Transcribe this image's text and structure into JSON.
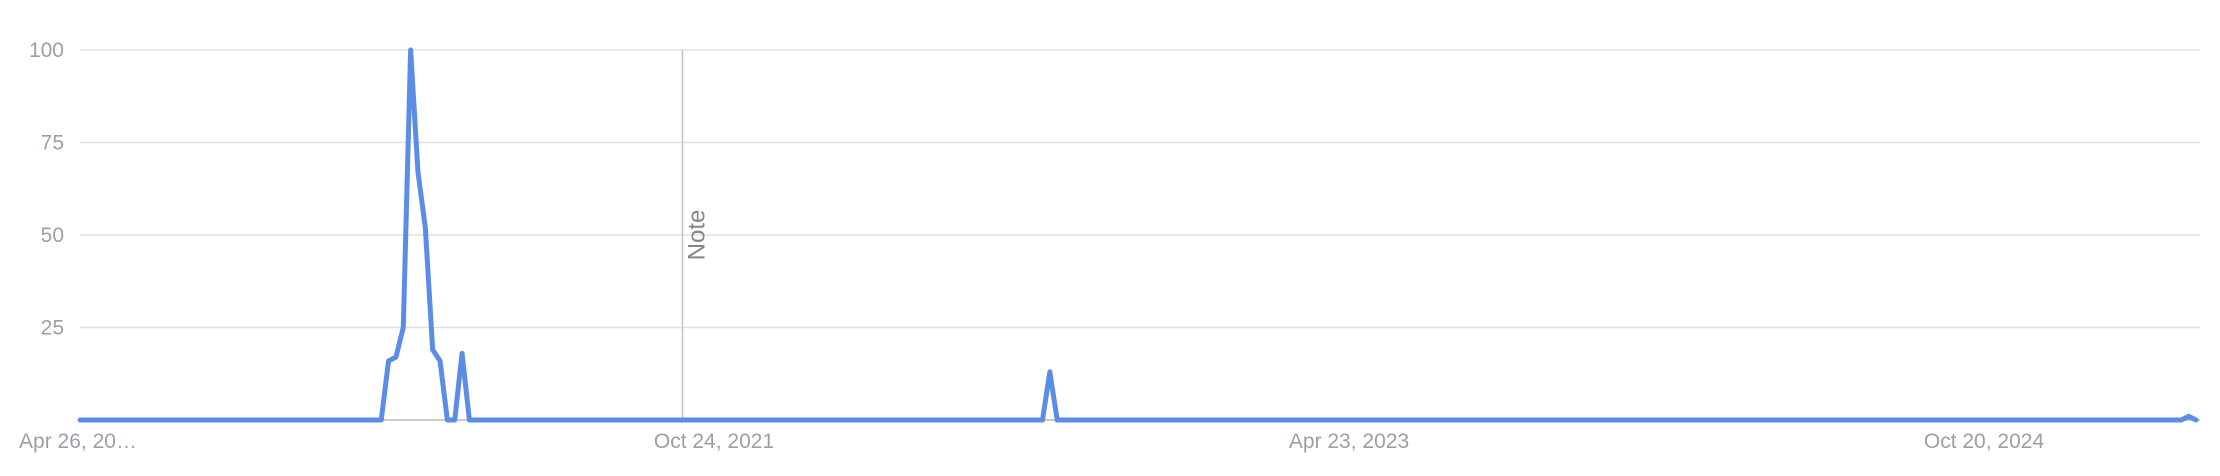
{
  "chart_data": {
    "type": "line",
    "title": "",
    "xlabel": "",
    "ylabel": "",
    "ylim": [
      0,
      100
    ],
    "yticks": [
      100,
      75,
      50,
      25
    ],
    "xticks": [
      "Apr 26, 20…",
      "Oct 24, 2021",
      "Apr 23, 2023",
      "Oct 20, 2024"
    ],
    "grid": true,
    "legend": "none",
    "line_color": "#5b8de6",
    "annotation": {
      "label": "Note",
      "x_index": 82
    },
    "series": [
      {
        "values": [
          0,
          0,
          0,
          0,
          0,
          0,
          0,
          0,
          0,
          0,
          0,
          0,
          0,
          0,
          0,
          0,
          0,
          0,
          0,
          0,
          0,
          0,
          0,
          0,
          0,
          0,
          0,
          0,
          0,
          0,
          0,
          0,
          0,
          0,
          0,
          0,
          0,
          0,
          0,
          0,
          0,
          0,
          16,
          17,
          25,
          100,
          67,
          52,
          19,
          16,
          0,
          0,
          18,
          0,
          0,
          0,
          0,
          0,
          0,
          0,
          0,
          0,
          0,
          0,
          0,
          0,
          0,
          0,
          0,
          0,
          0,
          0,
          0,
          0,
          0,
          0,
          0,
          0,
          0,
          0,
          0,
          0,
          0,
          0,
          0,
          0,
          0,
          0,
          0,
          0,
          0,
          0,
          0,
          0,
          0,
          0,
          0,
          0,
          0,
          0,
          0,
          0,
          0,
          0,
          0,
          0,
          0,
          0,
          0,
          0,
          0,
          0,
          0,
          0,
          0,
          0,
          0,
          0,
          0,
          0,
          0,
          0,
          0,
          0,
          0,
          0,
          0,
          0,
          0,
          0,
          0,
          0,
          13,
          0,
          0,
          0,
          0,
          0,
          0,
          0,
          0,
          0,
          0,
          0,
          0,
          0,
          0,
          0,
          0,
          0,
          0,
          0,
          0,
          0,
          0,
          0,
          0,
          0,
          0,
          0,
          0,
          0,
          0,
          0,
          0,
          0,
          0,
          0,
          0,
          0,
          0,
          0,
          0,
          0,
          0,
          0,
          0,
          0,
          0,
          0,
          0,
          0,
          0,
          0,
          0,
          0,
          0,
          0,
          0,
          0,
          0,
          0,
          0,
          0,
          0,
          0,
          0,
          0,
          0,
          0,
          0,
          0,
          0,
          0,
          0,
          0,
          0,
          0,
          0,
          0,
          0,
          0,
          0,
          0,
          0,
          0,
          0,
          0,
          0,
          0,
          0,
          0,
          0,
          0,
          0,
          0,
          0,
          0,
          0,
          0,
          0,
          0,
          0,
          0,
          0,
          0,
          0,
          0,
          0,
          0,
          0,
          0,
          0,
          0,
          0,
          0,
          0,
          0,
          0,
          0,
          0,
          0,
          0,
          0,
          0,
          0,
          0,
          0,
          0,
          0,
          0,
          0,
          0,
          0,
          0,
          0,
          0,
          0,
          0,
          0,
          0,
          0,
          0,
          0,
          0,
          0,
          0,
          0,
          0,
          0,
          0,
          0,
          0,
          0,
          0,
          0,
          0,
          1,
          0
        ]
      }
    ]
  }
}
